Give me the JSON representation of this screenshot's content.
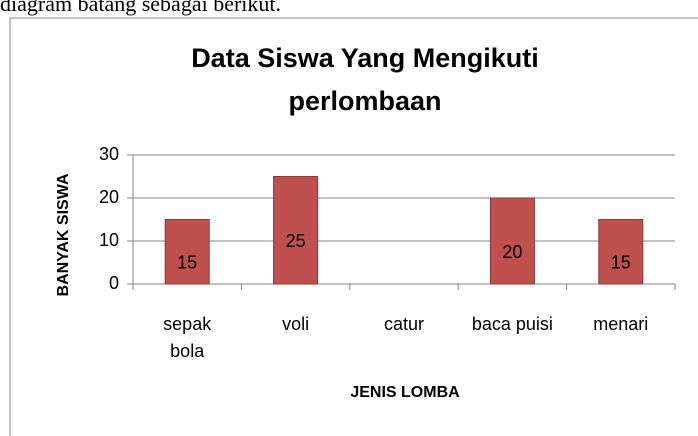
{
  "document_text": "diagram batang sebagai berikut.",
  "chart_data": {
    "type": "bar",
    "title": "Data  Siswa Yang Mengikuti perlombaan",
    "x_label": "JENIS LOMBA",
    "y_label": "BANYAK SISWA",
    "categories": [
      "sepak bola",
      "voli",
      "catur",
      "baca puisi",
      "menari"
    ],
    "values": [
      15,
      25,
      0,
      20,
      15
    ],
    "value_labels": [
      "15",
      "25",
      null,
      "20",
      "15"
    ],
    "color": "#c0504d",
    "ylim": [
      0,
      30
    ],
    "yticks": [
      0,
      10,
      20,
      30
    ],
    "grid": true
  }
}
